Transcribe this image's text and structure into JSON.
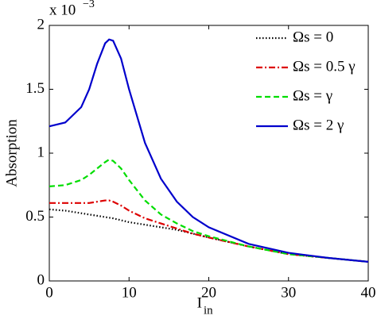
{
  "chart_data": {
    "type": "line",
    "x_label": "I",
    "x_label_subscript": "in",
    "y_label": "Absorption",
    "y_scale_label": "x 10",
    "y_scale_exponent": "−3",
    "x": [
      0,
      2,
      4,
      5,
      6,
      7,
      7.5,
      8,
      9,
      10,
      12,
      14,
      16,
      18,
      20,
      25,
      30,
      35,
      40
    ],
    "series": [
      {
        "name": "Ωs = 0",
        "color": "#000000",
        "dash": "1.5,2.5",
        "values": [
          0.56,
          0.55,
          0.53,
          0.52,
          0.51,
          0.5,
          0.495,
          0.49,
          0.475,
          0.46,
          0.44,
          0.42,
          0.4,
          0.37,
          0.34,
          0.27,
          0.21,
          0.18,
          0.15
        ]
      },
      {
        "name": "Ωs = 0.5 γ",
        "color": "#dd0000",
        "dash": "8,3,2,3",
        "values": [
          0.61,
          0.61,
          0.61,
          0.61,
          0.62,
          0.63,
          0.63,
          0.62,
          0.59,
          0.55,
          0.49,
          0.45,
          0.41,
          0.37,
          0.34,
          0.27,
          0.21,
          0.18,
          0.15
        ]
      },
      {
        "name": "Ωs = γ",
        "color": "#00dd00",
        "dash": "7,4",
        "values": [
          0.74,
          0.75,
          0.79,
          0.83,
          0.88,
          0.93,
          0.95,
          0.94,
          0.88,
          0.79,
          0.63,
          0.52,
          0.45,
          0.39,
          0.35,
          0.27,
          0.21,
          0.18,
          0.15
        ]
      },
      {
        "name": "Ωs = 2 γ",
        "color": "#0000cc",
        "dash": "",
        "values": [
          1.21,
          1.24,
          1.36,
          1.5,
          1.7,
          1.86,
          1.89,
          1.88,
          1.74,
          1.5,
          1.08,
          0.8,
          0.62,
          0.5,
          0.42,
          0.29,
          0.22,
          0.18,
          0.15
        ]
      }
    ],
    "xlim": [
      0,
      40
    ],
    "xticks": [
      0,
      10,
      20,
      30,
      40
    ],
    "ylim": [
      0,
      2
    ],
    "yticks": [
      0,
      0.5,
      1,
      1.5,
      2
    ]
  }
}
